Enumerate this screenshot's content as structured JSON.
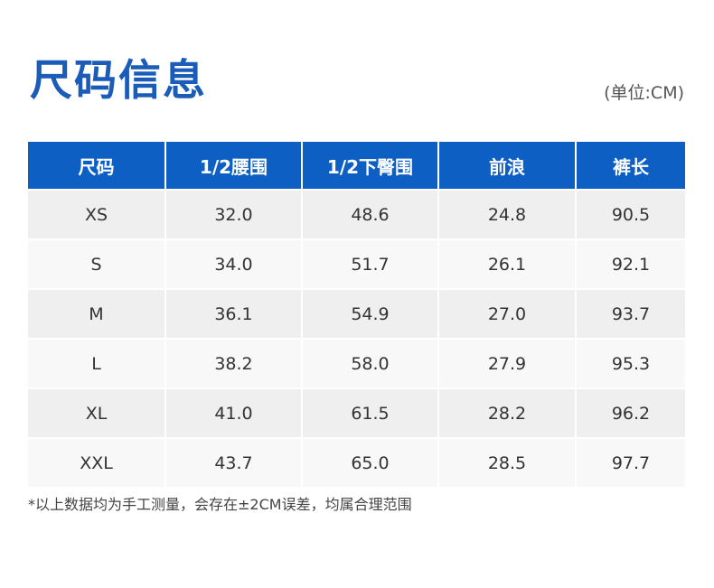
{
  "title": "尺码信息",
  "unit": "(单位:CM)",
  "table": {
    "headers": [
      "尺码",
      "1/2腰围",
      "1/2下臀围",
      "前浪",
      "裤长"
    ],
    "rows": [
      [
        "XS",
        "32.0",
        "48.6",
        "24.8",
        "90.5"
      ],
      [
        "S",
        "34.0",
        "51.7",
        "26.1",
        "92.1"
      ],
      [
        "M",
        "36.1",
        "54.9",
        "27.0",
        "93.7"
      ],
      [
        "L",
        "38.2",
        "58.0",
        "27.9",
        "95.3"
      ],
      [
        "XL",
        "41.0",
        "61.5",
        "28.2",
        "96.2"
      ],
      [
        "XXL",
        "43.7",
        "65.0",
        "28.5",
        "97.7"
      ]
    ]
  },
  "note": "*以上数据均为手工测量，会存在±2CM误差，均属合理范围",
  "colors": {
    "title": "#1a5cb8",
    "header_bg": "#0e5fc4",
    "row_odd": "#efefef",
    "row_even": "#f8f8f8"
  }
}
